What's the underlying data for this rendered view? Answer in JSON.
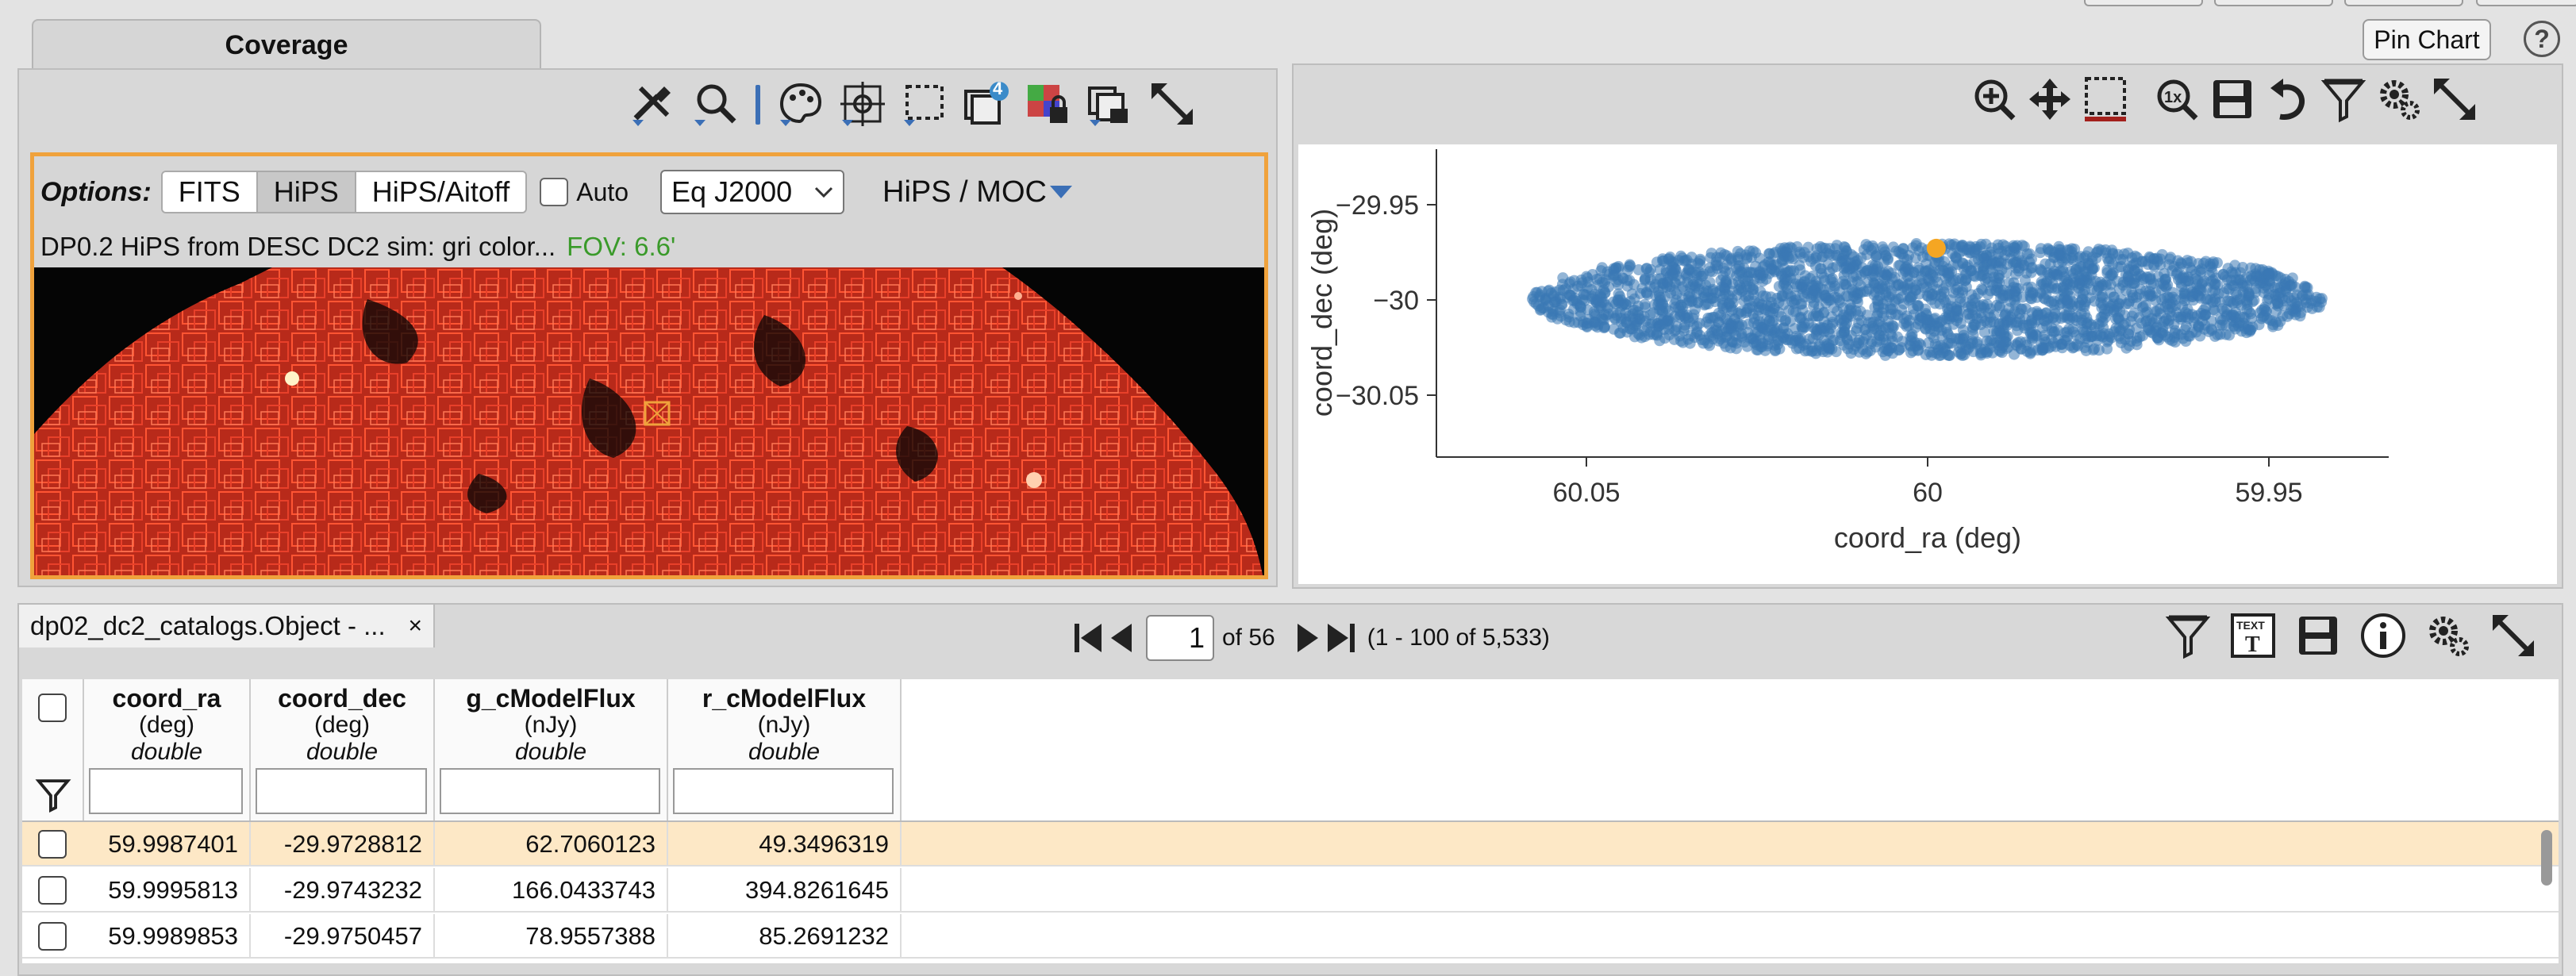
{
  "coverage_tab": {
    "label": "Coverage"
  },
  "pin_chart": {
    "label": "Pin Chart"
  },
  "help": {
    "label": "?"
  },
  "image_toolbar": {
    "layers_badge": "4"
  },
  "image_options": {
    "label": "Options:",
    "modes": [
      "FITS",
      "HiPS",
      "HiPS/Aitoff"
    ],
    "selected_mode": "HiPS",
    "auto_label": "Auto",
    "coord_system": "Eq J2000",
    "hips_moc_label": "HiPS / MOC"
  },
  "image_info": {
    "title": "DP0.2 HiPS from DESC DC2 sim: gri color...",
    "fov": "FOV: 6.6'"
  },
  "chart_data": {
    "type": "scatter",
    "xlabel": "coord_ra (deg)",
    "ylabel": "coord_dec (deg)",
    "x_reversed": true,
    "xlim": [
      60.065,
      59.935
    ],
    "ylim": [
      -30.075,
      -29.935
    ],
    "xticks": [
      60.05,
      60,
      59.95
    ],
    "yticks": [
      -29.95,
      -30,
      -30.05
    ],
    "xtick_labels": [
      "60.05",
      "60",
      "59.95"
    ],
    "ytick_labels": [
      "−29.95",
      "−30",
      "−30.05"
    ],
    "ellipse_region": {
      "ra_center": 60.0,
      "dec_center": -29.9998,
      "ra_halfwidth": 0.058,
      "dec_halfwidth": 0.0295
    },
    "highlighted_point": {
      "x": 59.9987401,
      "y": -29.9728812
    },
    "point_color": "#3a78b4",
    "highlight_color": "#f5a623",
    "grid": false
  },
  "table_tab": {
    "label": "dp02_dc2_catalogs.Object - ...",
    "close": "×"
  },
  "pager": {
    "page": "1",
    "of_label": "of 56",
    "range": "(1 - 100 of 5,533)"
  },
  "table": {
    "columns": [
      {
        "name": "coord_ra",
        "unit": "(deg)",
        "type": "double"
      },
      {
        "name": "coord_dec",
        "unit": "(deg)",
        "type": "double"
      },
      {
        "name": "g_cModelFlux",
        "unit": "(nJy)",
        "type": "double"
      },
      {
        "name": "r_cModelFlux",
        "unit": "(nJy)",
        "type": "double"
      }
    ],
    "rows": [
      [
        "59.9987401",
        "-29.9728812",
        "62.7060123",
        "49.3496319"
      ],
      [
        "59.9995813",
        "-29.9743232",
        "166.0433743",
        "394.8261645"
      ],
      [
        "59.9989853",
        "-29.9750457",
        "78.9557388",
        "85.2691232"
      ]
    ],
    "selected_row": 0
  }
}
